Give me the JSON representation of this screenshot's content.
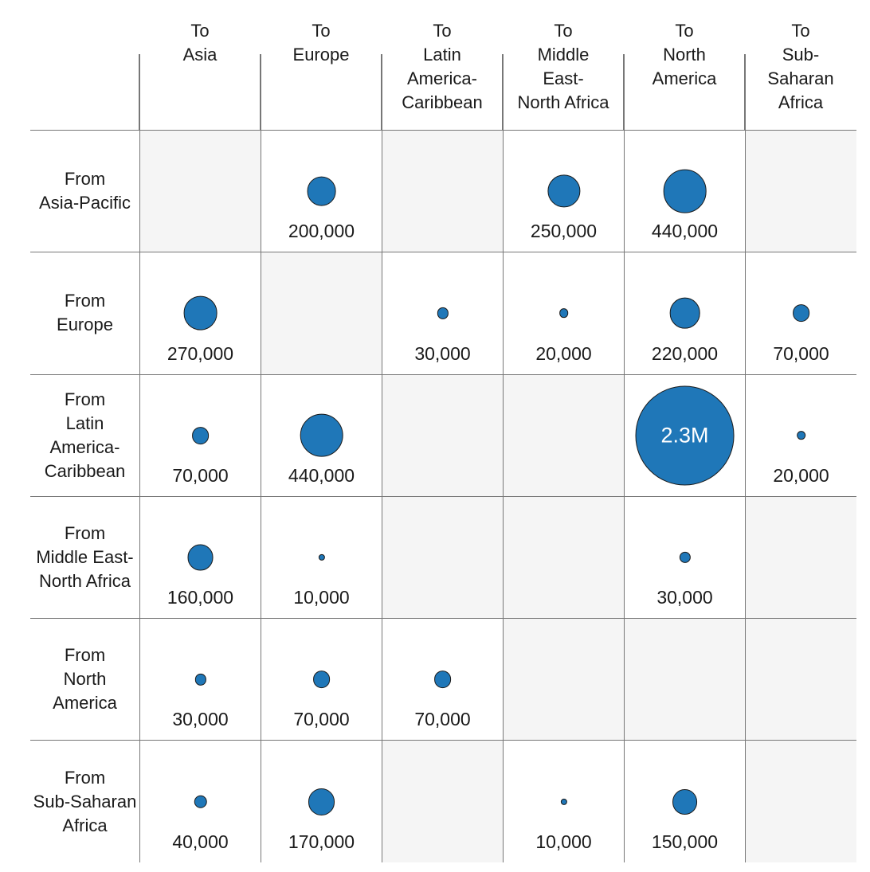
{
  "chart_data": {
    "type": "bubble-matrix",
    "description": "Origin-destination matrix of flows; bubble area proportional to value",
    "legend_position": "none",
    "grid": "on",
    "columns": [
      {
        "id": "asia",
        "header": "To\nAsia"
      },
      {
        "id": "europe",
        "header": "To\nEurope"
      },
      {
        "id": "latin-america-caribbean",
        "header": "To\nLatin\nAmerica-\nCaribbean"
      },
      {
        "id": "middle-east-north-africa",
        "header": "To\nMiddle\nEast-\nNorth Africa"
      },
      {
        "id": "north-america",
        "header": "To\nNorth\nAmerica"
      },
      {
        "id": "sub-saharan-africa",
        "header": "To\nSub-\nSaharan\nAfrica"
      }
    ],
    "rows": [
      {
        "id": "asia-pacific",
        "label": "From\nAsia-Pacific",
        "cells": [
          {
            "shaded": true
          },
          {
            "value": 200000,
            "label": "200,000"
          },
          {
            "shaded": true
          },
          {
            "value": 250000,
            "label": "250,000"
          },
          {
            "value": 440000,
            "label": "440,000"
          },
          {
            "shaded": true
          }
        ]
      },
      {
        "id": "europe",
        "label": "From\nEurope",
        "cells": [
          {
            "value": 270000,
            "label": "270,000"
          },
          {
            "shaded": true
          },
          {
            "value": 30000,
            "label": "30,000"
          },
          {
            "value": 20000,
            "label": "20,000"
          },
          {
            "value": 220000,
            "label": "220,000"
          },
          {
            "value": 70000,
            "label": "70,000"
          }
        ]
      },
      {
        "id": "latin-america-caribbean",
        "label": "From\nLatin America-\nCaribbean",
        "cells": [
          {
            "value": 70000,
            "label": "70,000"
          },
          {
            "value": 440000,
            "label": "440,000"
          },
          {
            "shaded": true
          },
          {
            "shaded": true
          },
          {
            "value": 2300000,
            "label": "2.3M",
            "label_inside": true
          },
          {
            "value": 20000,
            "label": "20,000"
          }
        ]
      },
      {
        "id": "middle-east-north-africa",
        "label": "From\nMiddle East-\nNorth Africa",
        "cells": [
          {
            "value": 160000,
            "label": "160,000"
          },
          {
            "value": 10000,
            "label": "10,000"
          },
          {
            "shaded": true
          },
          {
            "shaded": true
          },
          {
            "value": 30000,
            "label": "30,000"
          },
          {
            "shaded": true
          }
        ]
      },
      {
        "id": "north-america",
        "label": "From\nNorth\nAmerica",
        "cells": [
          {
            "value": 30000,
            "label": "30,000"
          },
          {
            "value": 70000,
            "label": "70,000"
          },
          {
            "value": 70000,
            "label": "70,000"
          },
          {
            "shaded": true
          },
          {
            "shaded": true
          },
          {
            "shaded": true
          }
        ]
      },
      {
        "id": "sub-saharan-africa",
        "label": "From\nSub-Saharan\nAfrica",
        "cells": [
          {
            "value": 40000,
            "label": "40,000"
          },
          {
            "value": 170000,
            "label": "170,000"
          },
          {
            "shaded": true
          },
          {
            "value": 10000,
            "label": "10,000"
          },
          {
            "value": 150000,
            "label": "150,000"
          },
          {
            "shaded": true
          }
        ]
      }
    ],
    "bubble_scale": {
      "diameter_per_sqrt_value": 0.0824
    },
    "colors": {
      "bubble_fill": "#1f77b8",
      "bubble_stroke": "#1a1a1a",
      "shaded_cell_bg": "#f5f5f5",
      "grid_line": "#777777",
      "text": "#1a1a1a",
      "inside_label": "#ffffff"
    }
  }
}
